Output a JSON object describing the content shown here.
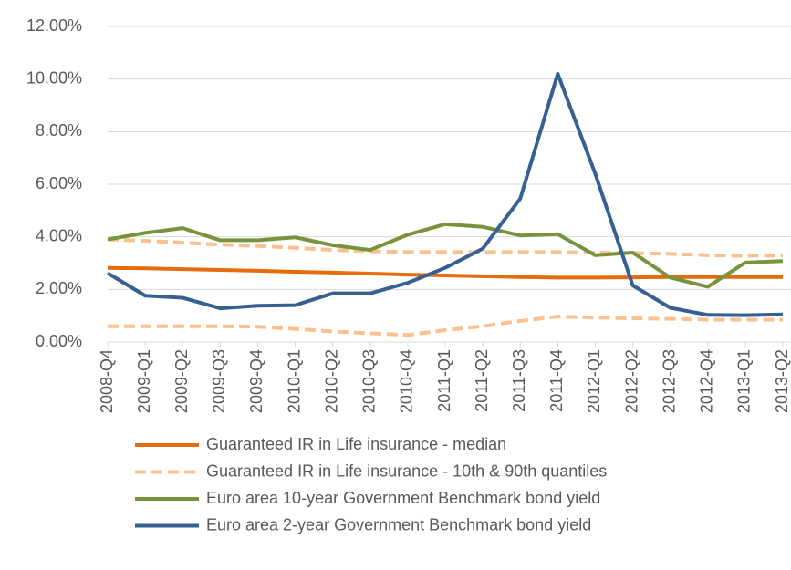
{
  "chart_data": {
    "type": "line",
    "categories": [
      "2008-Q4",
      "2009-Q1",
      "2009-Q2",
      "2009-Q3",
      "2009-Q4",
      "2010-Q1",
      "2010-Q2",
      "2010-Q3",
      "2010-Q4",
      "2011-Q1",
      "2011-Q2",
      "2011-Q3",
      "2011-Q4",
      "2012-Q1",
      "2012-Q2",
      "2012-Q3",
      "2012-Q4",
      "2013-Q1",
      "2013-Q2"
    ],
    "ylim": [
      0,
      12
    ],
    "yticks": [
      {
        "value": 0,
        "label": "0.00%"
      },
      {
        "value": 2,
        "label": "2.00%"
      },
      {
        "value": 4,
        "label": "4.00%"
      },
      {
        "value": 6,
        "label": "6.00%"
      },
      {
        "value": 8,
        "label": "8.00%"
      },
      {
        "value": 10,
        "label": "10.00%"
      },
      {
        "value": 12,
        "label": "12.00%"
      }
    ],
    "grid": true,
    "series": [
      {
        "name": "Guaranteed IR in Life insurance - median",
        "color": "#e46c0a",
        "dashed": false,
        "values": [
          2.82,
          2.8,
          2.77,
          2.74,
          2.71,
          2.67,
          2.64,
          2.6,
          2.56,
          2.53,
          2.5,
          2.47,
          2.45,
          2.45,
          2.46,
          2.47,
          2.47,
          2.47,
          2.47
        ]
      },
      {
        "name": "Guaranteed IR in Life insurance - 10th & 90th quantiles",
        "color": "#fac090",
        "dashed": true,
        "lower": [
          0.6,
          0.6,
          0.6,
          0.6,
          0.58,
          0.5,
          0.4,
          0.33,
          0.27,
          0.45,
          0.6,
          0.8,
          0.97,
          0.93,
          0.9,
          0.88,
          0.85,
          0.85,
          0.85
        ],
        "upper": [
          3.9,
          3.85,
          3.78,
          3.7,
          3.65,
          3.58,
          3.5,
          3.45,
          3.42,
          3.42,
          3.42,
          3.42,
          3.42,
          3.4,
          3.38,
          3.35,
          3.3,
          3.28,
          3.28
        ]
      },
      {
        "name": "Euro area 10-year Government Benchmark bond yield",
        "color": "#77933c",
        "dashed": false,
        "values": [
          3.9,
          4.15,
          4.33,
          3.87,
          3.87,
          3.98,
          3.68,
          3.5,
          4.08,
          4.48,
          4.38,
          4.05,
          4.1,
          3.3,
          3.4,
          2.45,
          2.1,
          3.02,
          3.08
        ]
      },
      {
        "name": "Euro area 2-year Government Benchmark bond yield",
        "color": "#366092",
        "dashed": false,
        "values": [
          2.62,
          1.76,
          1.68,
          1.28,
          1.38,
          1.4,
          1.85,
          1.85,
          2.25,
          2.82,
          3.55,
          5.45,
          10.2,
          6.4,
          2.15,
          1.3,
          1.03,
          1.02,
          1.05
        ]
      }
    ]
  }
}
